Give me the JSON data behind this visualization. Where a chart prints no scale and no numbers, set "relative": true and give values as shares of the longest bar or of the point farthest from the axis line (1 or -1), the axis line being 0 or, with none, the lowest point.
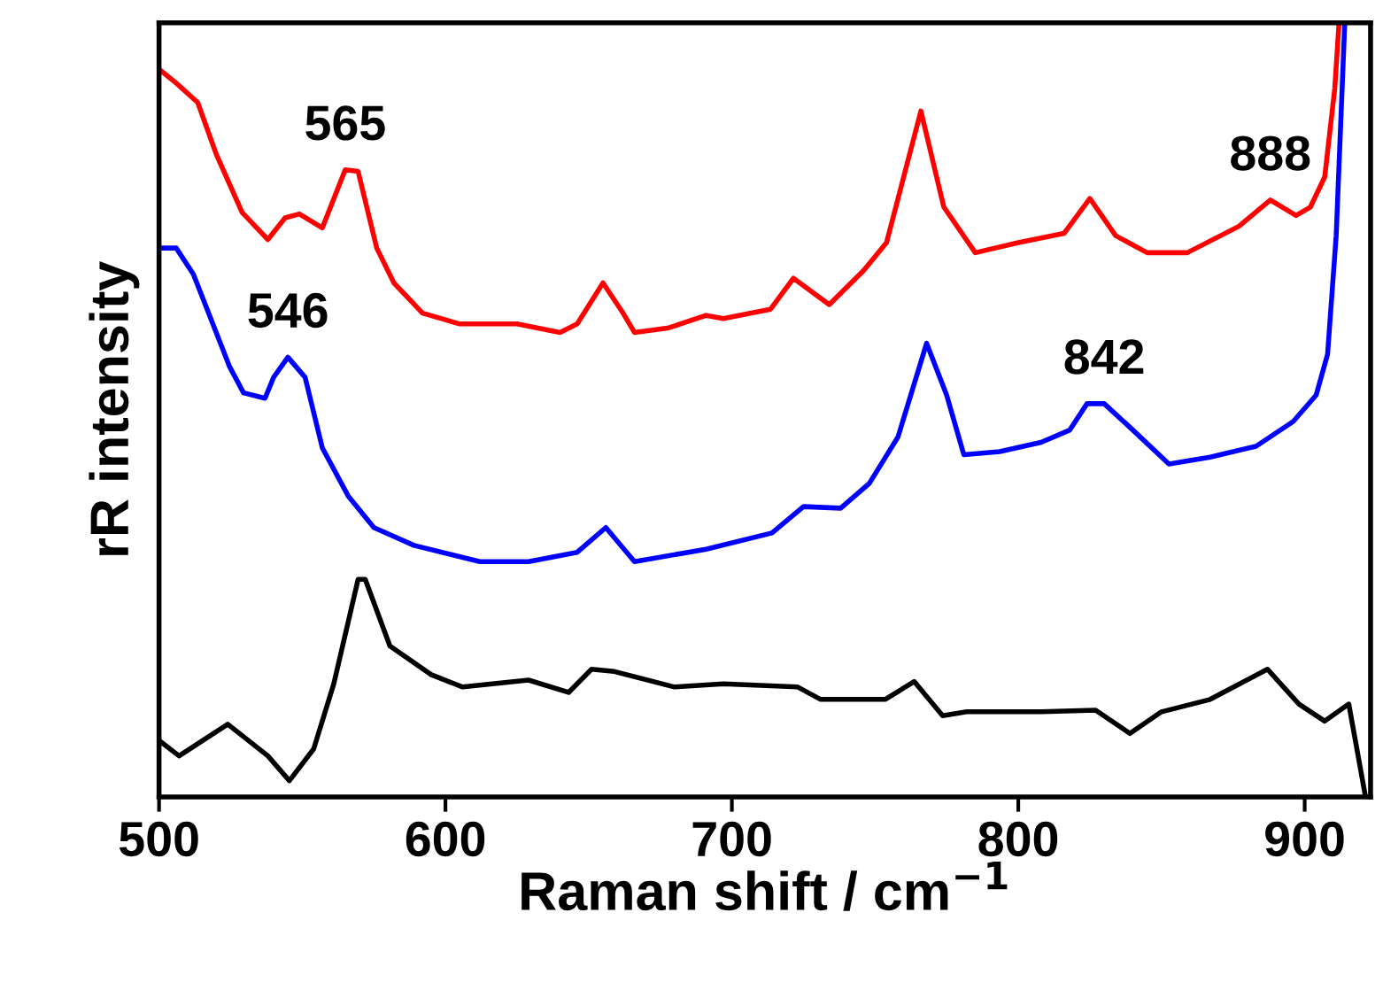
{
  "chart_data": {
    "type": "line",
    "xlabel": "Raman shift / cm$^{−1}$",
    "ylabel": "rR intensity",
    "relative": true,
    "xlim": [
      500,
      923
    ],
    "xticks": [
      500,
      600,
      700,
      800,
      900
    ],
    "tick_labels": "x",
    "grid": false,
    "legend": false,
    "line_style": "solid",
    "marker": "none",
    "series": [
      {
        "color": "#ff0000",
        "x": [
          500,
          506,
          513.5,
          520,
          529,
          538,
          544,
          549,
          557,
          565,
          569.5,
          576,
          582,
          592,
          605,
          625,
          640,
          646,
          655,
          662,
          666,
          678,
          691,
          697,
          713.5,
          721.5,
          734,
          746,
          754,
          766,
          774,
          785,
          800,
          816,
          825,
          834,
          845,
          859,
          877,
          888,
          897,
          902,
          907,
          910.5,
          912
        ],
        "values": [
          0.94,
          0.922,
          0.897,
          0.83,
          0.755,
          0.72,
          0.748,
          0.753,
          0.735,
          0.81,
          0.808,
          0.709,
          0.664,
          0.625,
          0.611,
          0.611,
          0.6,
          0.611,
          0.664,
          0.625,
          0.6,
          0.606,
          0.622,
          0.618,
          0.63,
          0.67,
          0.636,
          0.68,
          0.716,
          0.886,
          0.762,
          0.703,
          0.716,
          0.728,
          0.773,
          0.725,
          0.703,
          0.703,
          0.737,
          0.771,
          0.751,
          0.762,
          0.801,
          0.915,
          1.0
        ]
      },
      {
        "color": "#0000ff",
        "x": [
          500,
          506,
          512,
          524.6,
          529.5,
          537,
          540,
          545,
          551,
          557,
          566,
          575,
          589,
          612,
          629,
          646,
          656,
          666,
          691,
          714,
          725,
          738,
          748,
          758,
          768,
          775,
          781,
          793.5,
          808,
          818,
          824,
          830,
          840,
          852.6,
          867,
          883,
          896,
          904,
          908,
          911,
          914
        ],
        "values": [
          0.709,
          0.709,
          0.675,
          0.556,
          0.522,
          0.515,
          0.542,
          0.568,
          0.542,
          0.451,
          0.389,
          0.348,
          0.325,
          0.304,
          0.304,
          0.316,
          0.348,
          0.304,
          0.32,
          0.341,
          0.375,
          0.373,
          0.405,
          0.465,
          0.586,
          0.519,
          0.442,
          0.446,
          0.458,
          0.474,
          0.508,
          0.508,
          0.474,
          0.43,
          0.439,
          0.453,
          0.485,
          0.519,
          0.572,
          0.725,
          1.0
        ]
      },
      {
        "color": "#000000",
        "x": [
          500,
          507,
          524,
          538,
          545.5,
          554,
          561,
          569.5,
          572,
          580.6,
          595,
          606,
          629,
          643,
          651,
          659,
          680,
          697,
          723,
          731,
          753.5,
          763.7,
          773.6,
          782,
          808,
          827,
          839,
          850,
          867,
          887,
          898,
          907,
          915.4,
          921
        ],
        "values": [
          0.073,
          0.053,
          0.094,
          0.053,
          0.021,
          0.062,
          0.146,
          0.281,
          0.281,
          0.195,
          0.158,
          0.142,
          0.151,
          0.135,
          0.165,
          0.162,
          0.142,
          0.146,
          0.142,
          0.126,
          0.126,
          0.149,
          0.105,
          0.11,
          0.11,
          0.112,
          0.082,
          0.11,
          0.126,
          0.165,
          0.12,
          0.098,
          0.12,
          0.005
        ]
      }
    ],
    "annotations": [
      {
        "text": "565",
        "x": 565,
        "y": 0.81
      },
      {
        "text": "546",
        "x": 545,
        "y": 0.568
      },
      {
        "text": "842",
        "x": 830,
        "y": 0.508
      },
      {
        "text": "888",
        "x": 888,
        "y": 0.771
      }
    ]
  }
}
